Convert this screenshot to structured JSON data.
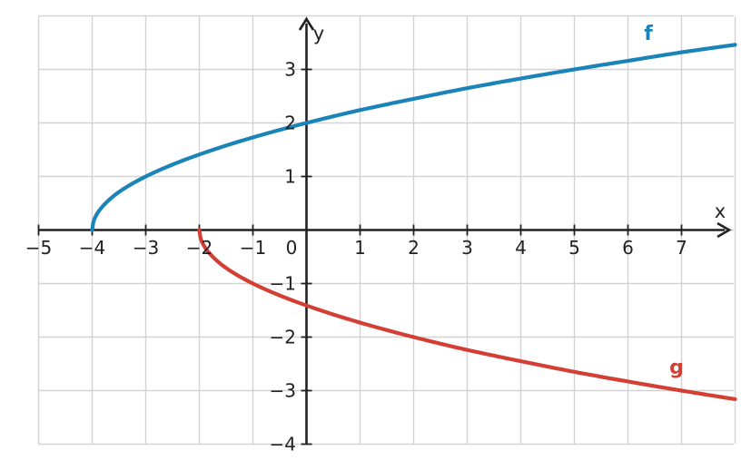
{
  "chart_data": {
    "type": "line",
    "xlabel": "x",
    "ylabel": "y",
    "xlim": [
      -5,
      8
    ],
    "ylim": [
      -4,
      4
    ],
    "grid": true,
    "x_ticks": [
      -5,
      -4,
      -3,
      -2,
      -1,
      1,
      2,
      3,
      4,
      5,
      6,
      7
    ],
    "x_tick_labels": [
      "−5",
      "−4",
      "−3",
      "−2",
      "−1",
      "1",
      "2",
      "3",
      "4",
      "5",
      "6",
      "7"
    ],
    "y_ticks": [
      -4,
      -3,
      -2,
      -1,
      1,
      2,
      3
    ],
    "y_tick_labels": [
      "−4",
      "−3",
      "−2",
      "−1",
      "1",
      "2",
      "3"
    ],
    "origin_label": "0",
    "series": [
      {
        "name": "f",
        "color": "#1a84b8",
        "x": [
          -4,
          -3.75,
          -3.5,
          -3,
          -2,
          -1,
          0,
          1,
          2,
          3,
          4,
          5,
          6,
          7,
          8
        ],
        "y": [
          0,
          0.5,
          0.71,
          1,
          1.41,
          1.73,
          2,
          2.24,
          2.45,
          2.65,
          2.83,
          3,
          3.16,
          3.32,
          3.46
        ]
      },
      {
        "name": "g",
        "color": "#d43f35",
        "x": [
          -2,
          -1.75,
          -1.5,
          -1,
          0,
          1,
          2,
          3,
          4,
          5,
          6,
          7,
          8
        ],
        "y": [
          0,
          -0.5,
          -0.71,
          -1,
          -1.41,
          -1.73,
          -2,
          -2.24,
          -2.45,
          -2.65,
          -2.83,
          -3,
          -3.16
        ]
      }
    ]
  }
}
